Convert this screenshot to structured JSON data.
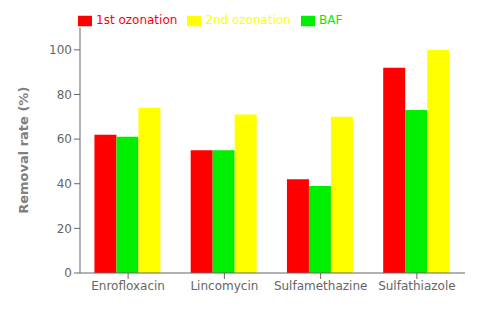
{
  "chart_data": {
    "type": "bar",
    "categories": [
      "Enrofloxacin",
      "Lincomycin",
      "Sulfamethazine",
      "Sulfathiazole"
    ],
    "series": [
      {
        "name": "1st ozonation",
        "color": "#ff0000",
        "values": [
          62,
          55,
          42,
          92
        ]
      },
      {
        "name": "BAF",
        "color": "#00ee00",
        "values": [
          61,
          55,
          39,
          73
        ]
      },
      {
        "name": "2nd ozonation",
        "color": "#ffff00",
        "values": [
          74,
          71,
          70,
          100
        ]
      }
    ],
    "ylabel": "Removal rate (%)",
    "ylim": [
      0,
      110
    ],
    "yticks": [
      0,
      20,
      40,
      60,
      80,
      100
    ],
    "grid": false,
    "legend": "upper left"
  }
}
